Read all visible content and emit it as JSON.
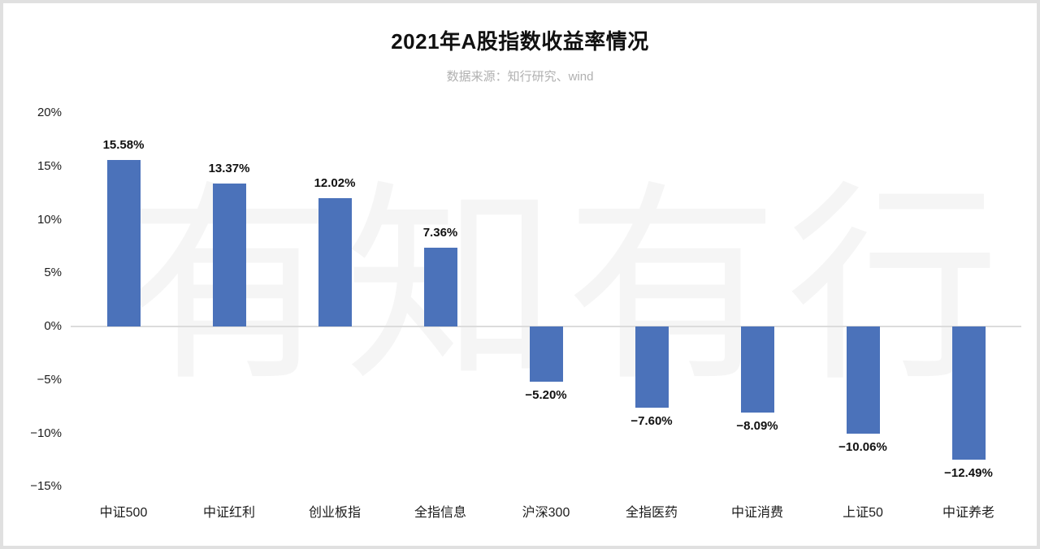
{
  "chart_data": {
    "type": "bar",
    "title": "2021年A股指数收益率情况",
    "subtitle": "数据来源：知行研究、wind",
    "watermark": "有知有行",
    "categories": [
      "中证500",
      "中证红利",
      "创业板指",
      "全指信息",
      "沪深300",
      "全指医药",
      "中证消费",
      "上证50",
      "中证养老"
    ],
    "values": [
      15.58,
      13.37,
      12.02,
      7.36,
      -5.2,
      -7.6,
      -8.09,
      -10.06,
      -12.49
    ],
    "value_labels": [
      "15.58%",
      "13.37%",
      "12.02%",
      "7.36%",
      "−5.20%",
      "−7.60%",
      "−8.09%",
      "−10.06%",
      "−12.49%"
    ],
    "y_tick_values": [
      20,
      15,
      10,
      5,
      0,
      -5,
      -10,
      -15
    ],
    "y_tick_labels": [
      "20%",
      "15%",
      "10%",
      "5%",
      "0%",
      "−5%",
      "−10%",
      "−15%"
    ],
    "ylim": [
      -17,
      21
    ],
    "xlabel": "",
    "ylabel": "",
    "grid": false,
    "legend_position": "none",
    "bar_color": "#4b72ba",
    "zero_line_color": "#dcdcdc",
    "title_color": "#111111",
    "subtitle_color": "#b0b0b0",
    "watermark_color": "#f5f5f5"
  }
}
